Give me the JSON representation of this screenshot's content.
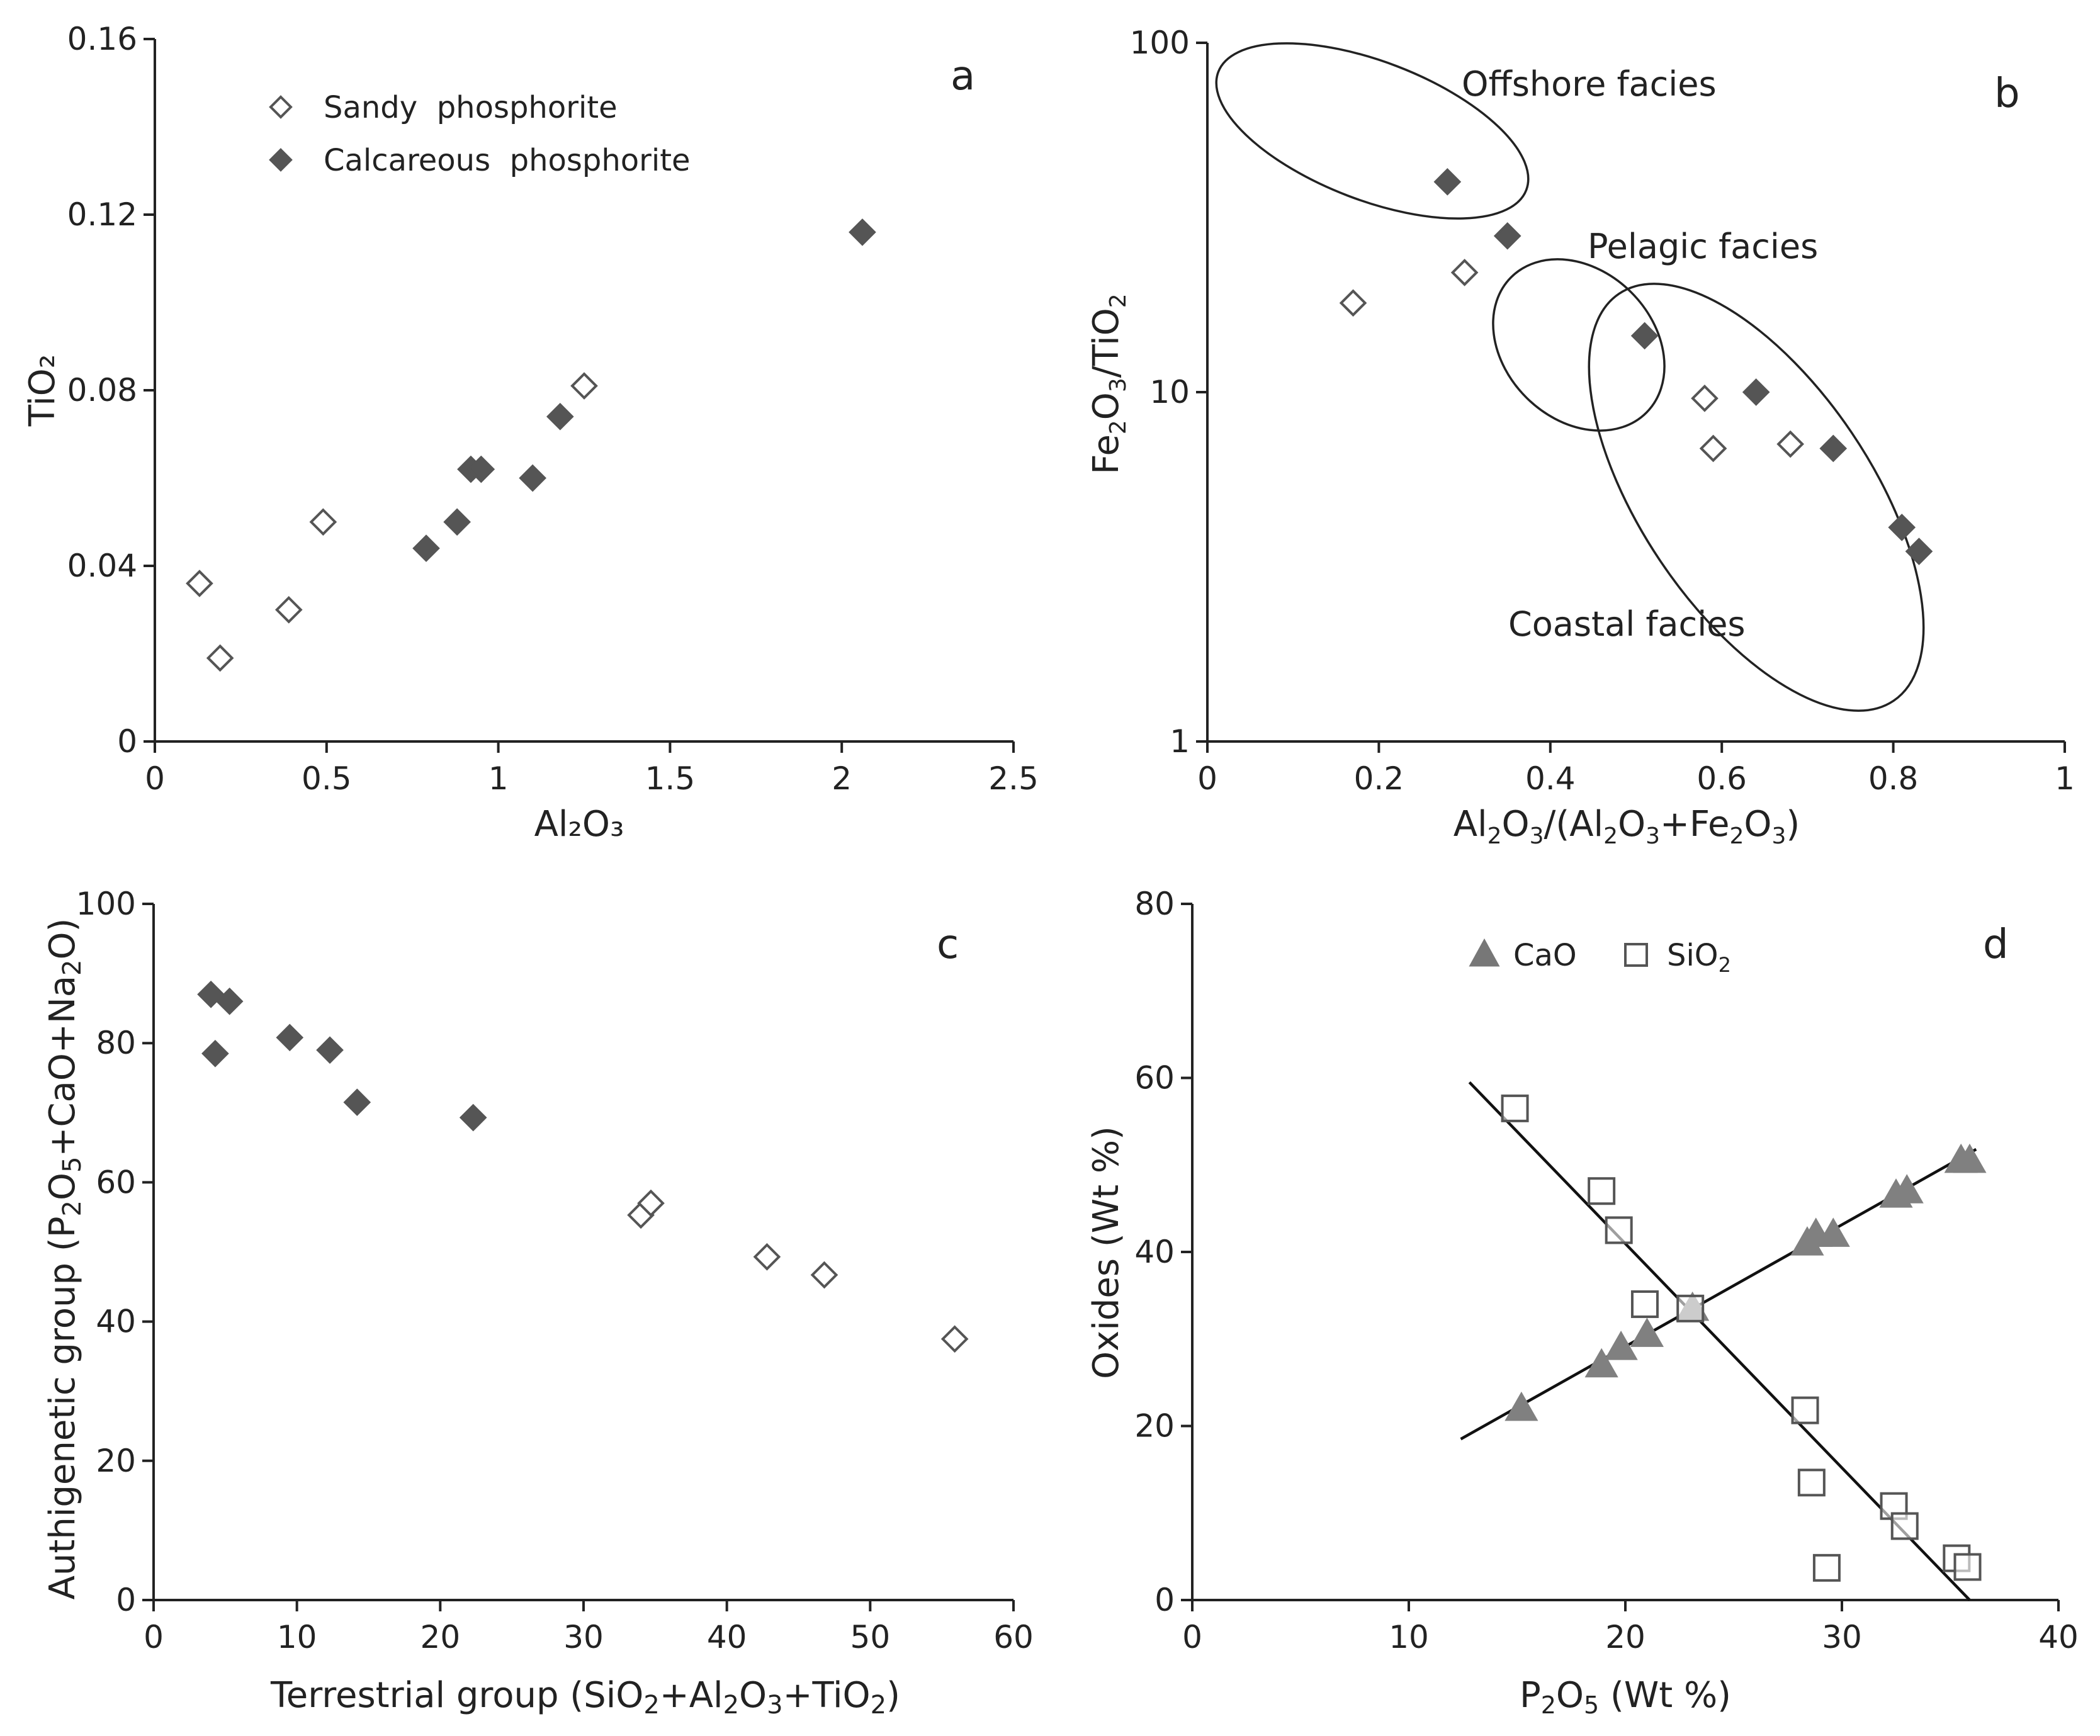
{
  "chart_data": [
    {
      "panel": "a",
      "type": "scatter",
      "xlabel": "Al₂O₃",
      "ylabel": "TiO₂",
      "xlim": [
        0,
        2.5
      ],
      "ylim": [
        0,
        0.16
      ],
      "xticks": [
        "0",
        "0.5",
        "1",
        "1.5",
        "2",
        "2.5"
      ],
      "yticks": [
        "0",
        "0.04",
        "0.08",
        "0.12",
        "0.16"
      ],
      "legend_position": "top-left",
      "series": [
        {
          "name": "Sandy  phosphorite",
          "marker": "open-diamond",
          "points": [
            [
              0.13,
              0.036
            ],
            [
              0.19,
              0.019
            ],
            [
              0.39,
              0.03
            ],
            [
              0.49,
              0.05
            ],
            [
              1.25,
              0.081
            ]
          ]
        },
        {
          "name": "Calcareous  phosphorite",
          "marker": "filled-diamond",
          "points": [
            [
              0.79,
              0.044
            ],
            [
              0.88,
              0.05
            ],
            [
              0.92,
              0.062
            ],
            [
              0.95,
              0.062
            ],
            [
              1.1,
              0.06
            ],
            [
              1.18,
              0.074
            ],
            [
              2.06,
              0.116
            ]
          ]
        }
      ]
    },
    {
      "panel": "b",
      "type": "scatter",
      "xlabel": "Al₂O₃/(Al₂O₃+Fe₂O₃)",
      "ylabel": "Fe₂O₃/TiO₂",
      "yscale": "log",
      "xlim": [
        0,
        1
      ],
      "ylim": [
        1,
        100
      ],
      "xticks": [
        "0",
        "0.2",
        "0.4",
        "0.6",
        "0.8",
        "1"
      ],
      "yticks": [
        "1",
        "10",
        "100"
      ],
      "annotations": [
        "Offshore facies",
        "Pelagic facies",
        "Coastal facies"
      ],
      "series": [
        {
          "name": "Sandy phosphorite",
          "marker": "open-diamond",
          "points": [
            [
              0.17,
              18.0
            ],
            [
              0.3,
              22.0
            ],
            [
              0.58,
              9.6
            ],
            [
              0.59,
              6.9
            ],
            [
              0.68,
              7.1
            ]
          ]
        },
        {
          "name": "Calcareous phosphorite",
          "marker": "filled-diamond",
          "points": [
            [
              0.28,
              40.0
            ],
            [
              0.35,
              28.0
            ],
            [
              0.51,
              14.5
            ],
            [
              0.64,
              10.0
            ],
            [
              0.73,
              6.9
            ],
            [
              0.81,
              4.1
            ],
            [
              0.83,
              3.5
            ]
          ]
        }
      ]
    },
    {
      "panel": "c",
      "type": "scatter",
      "xlabel": "Terrestrial group (SiO₂+Al₂O₃+TiO₂)",
      "ylabel": "Authigenetic group (P₂O₅+CaO+Na₂O)",
      "xlim": [
        0,
        60
      ],
      "ylim": [
        0,
        100
      ],
      "xticks": [
        "0",
        "10",
        "20",
        "30",
        "40",
        "50",
        "60"
      ],
      "yticks": [
        "0",
        "20",
        "40",
        "60",
        "80",
        "100"
      ],
      "series": [
        {
          "name": "Calcareous phosphorite",
          "marker": "filled-diamond",
          "points": [
            [
              4.0,
              87.0
            ],
            [
              5.3,
              86.0
            ],
            [
              4.3,
              78.5
            ],
            [
              9.5,
              80.8
            ],
            [
              12.3,
              79.0
            ],
            [
              14.2,
              71.5
            ],
            [
              22.3,
              69.3
            ]
          ]
        },
        {
          "name": "Sandy phosphorite",
          "marker": "open-diamond",
          "points": [
            [
              34.0,
              55.3
            ],
            [
              34.7,
              57.0
            ],
            [
              42.8,
              49.3
            ],
            [
              46.8,
              46.7
            ],
            [
              55.9,
              37.5
            ]
          ]
        }
      ]
    },
    {
      "panel": "d",
      "type": "scatter",
      "xlabel": "P₂O₅ (Wt %)",
      "ylabel": "Oxides (Wt %)",
      "xlim": [
        0,
        40
      ],
      "ylim": [
        0,
        80
      ],
      "xticks": [
        "0",
        "10",
        "20",
        "30",
        "40"
      ],
      "yticks": [
        "0",
        "20",
        "40",
        "60",
        "80"
      ],
      "legend_position": "top-center",
      "series": [
        {
          "name": "CaO",
          "marker": "filled-triangle",
          "points": [
            [
              15.2,
              22.0
            ],
            [
              18.9,
              27.0
            ],
            [
              19.8,
              29.0
            ],
            [
              21.0,
              30.5
            ],
            [
              23.1,
              33.5
            ],
            [
              28.4,
              41.0
            ],
            [
              28.8,
              42.0
            ],
            [
              29.6,
              42.0
            ],
            [
              32.5,
              46.5
            ],
            [
              33.0,
              47.0
            ],
            [
              35.5,
              50.5
            ],
            [
              35.9,
              50.5
            ]
          ]
        },
        {
          "name": "SiO₂",
          "marker": "open-square",
          "points": [
            [
              14.9,
              56.5
            ],
            [
              18.9,
              47.0
            ],
            [
              19.7,
              42.5
            ],
            [
              20.9,
              34.0
            ],
            [
              23.0,
              33.5
            ],
            [
              28.3,
              21.8
            ],
            [
              28.6,
              13.5
            ],
            [
              29.3,
              3.7
            ],
            [
              32.4,
              10.8
            ],
            [
              32.9,
              8.5
            ],
            [
              35.3,
              4.8
            ],
            [
              35.8,
              3.8
            ]
          ]
        }
      ],
      "trendlines": [
        {
          "name": "CaO trend",
          "from": [
            12.4,
            18.5
          ],
          "to": [
            36.2,
            51.8
          ]
        },
        {
          "name": "SiO₂ trend",
          "from": [
            12.8,
            59.5
          ],
          "to": [
            35.9,
            0.0
          ]
        }
      ]
    }
  ]
}
